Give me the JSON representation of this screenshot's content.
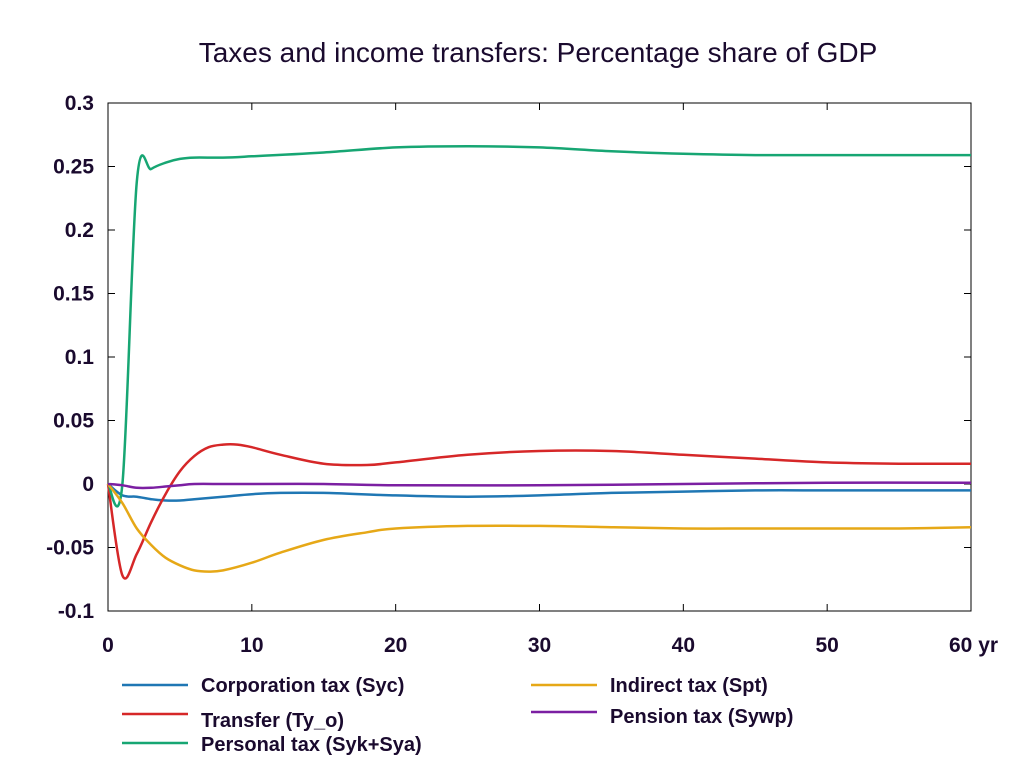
{
  "chart_data": {
    "type": "line",
    "title": "Taxes and income transfers: Percentage share of GDP",
    "xlabel": "",
    "ylabel": "",
    "x_unit_label": "yr",
    "xlim": [
      0,
      60
    ],
    "ylim": [
      -0.1,
      0.3
    ],
    "x_ticks": [
      0,
      10,
      20,
      30,
      40,
      50,
      60
    ],
    "x_tick_labels": [
      "0",
      "10",
      "20",
      "30",
      "40",
      "50",
      "60 yr"
    ],
    "y_ticks": [
      -0.1,
      -0.05,
      0,
      0.05,
      0.1,
      0.15,
      0.2,
      0.25,
      0.3
    ],
    "y_tick_labels": [
      "-0.1",
      "-0.05",
      "0",
      "0.05",
      "0.1",
      "0.15",
      "0.2",
      "0.25",
      "0.3"
    ],
    "grid": false,
    "legend_placement": "bottom",
    "series": [
      {
        "name": "Corporation tax (Syc)",
        "color": "#1f77b4",
        "x": [
          0,
          1,
          2,
          3,
          4,
          5,
          6,
          8,
          10,
          12,
          15,
          20,
          25,
          30,
          35,
          40,
          45,
          50,
          55,
          60
        ],
        "y": [
          0,
          -0.009,
          -0.01,
          -0.012,
          -0.013,
          -0.013,
          -0.012,
          -0.01,
          -0.008,
          -0.007,
          -0.007,
          -0.009,
          -0.01,
          -0.009,
          -0.007,
          -0.006,
          -0.005,
          -0.005,
          -0.005,
          -0.005
        ]
      },
      {
        "name": "Transfer (Ty_o)",
        "color": "#d62728",
        "x": [
          0,
          1,
          2,
          3,
          4,
          5,
          6,
          7,
          8,
          9,
          10,
          12,
          15,
          18,
          20,
          25,
          30,
          35,
          40,
          45,
          50,
          55,
          60
        ],
        "y": [
          0,
          -0.072,
          -0.055,
          -0.03,
          -0.008,
          0.01,
          0.022,
          0.029,
          0.031,
          0.031,
          0.029,
          0.023,
          0.016,
          0.015,
          0.017,
          0.023,
          0.026,
          0.026,
          0.023,
          0.02,
          0.017,
          0.016,
          0.016
        ]
      },
      {
        "name": "Personal tax (Syk+Sya)",
        "color": "#17a673",
        "x": [
          0,
          1,
          2,
          3,
          4,
          5,
          6,
          8,
          10,
          15,
          20,
          25,
          30,
          35,
          40,
          45,
          50,
          55,
          60
        ],
        "y": [
          0,
          0,
          0.238,
          0.248,
          0.253,
          0.256,
          0.257,
          0.257,
          0.258,
          0.261,
          0.265,
          0.266,
          0.265,
          0.262,
          0.26,
          0.259,
          0.259,
          0.259,
          0.259
        ]
      },
      {
        "name": "Indirect tax (Spt)",
        "color": "#e6a817",
        "x": [
          0,
          1,
          2,
          3,
          4,
          5,
          6,
          7,
          8,
          10,
          12,
          15,
          18,
          20,
          25,
          30,
          35,
          40,
          45,
          50,
          55,
          60
        ],
        "y": [
          0,
          -0.015,
          -0.035,
          -0.048,
          -0.058,
          -0.064,
          -0.068,
          -0.069,
          -0.068,
          -0.062,
          -0.054,
          -0.044,
          -0.038,
          -0.035,
          -0.033,
          -0.033,
          -0.034,
          -0.035,
          -0.035,
          -0.035,
          -0.035,
          -0.034
        ]
      },
      {
        "name": "Pension tax (Sywp)",
        "color": "#7b1fa2",
        "x": [
          0,
          1,
          2,
          3,
          4,
          5,
          6,
          8,
          10,
          15,
          20,
          30,
          40,
          50,
          60
        ],
        "y": [
          0,
          -0.001,
          -0.003,
          -0.003,
          -0.002,
          -0.001,
          0,
          0,
          0,
          0,
          -0.001,
          -0.001,
          0,
          0.001,
          0.001
        ]
      }
    ]
  }
}
